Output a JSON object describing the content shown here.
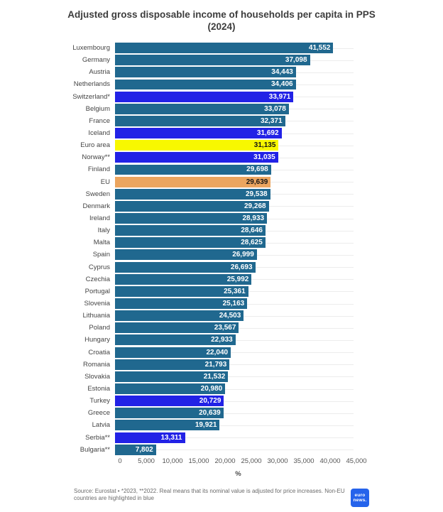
{
  "colors": {
    "teal": "#20688f",
    "blue": "#2222e6",
    "yellow": "#f8f800",
    "orange": "#eba55f",
    "logo_blue": "#2563eb",
    "value_light": "#ffffff",
    "value_dark": "#141414"
  },
  "chart_data": {
    "type": "bar",
    "orientation": "horizontal",
    "title": "Adjusted gross disposable income of households per capita in PPS (2024)",
    "xlabel": "%",
    "xlim": [
      0,
      45000
    ],
    "grid": "horizontal-row-lines",
    "xticks": [
      0,
      5000,
      10000,
      15000,
      20000,
      25000,
      30000,
      35000,
      40000,
      45000
    ],
    "xtick_labels": [
      "0",
      "5,000",
      "10,000",
      "15,000",
      "20,000",
      "25,000",
      "30,000",
      "35,000",
      "40,000",
      "45,000"
    ],
    "bars": [
      {
        "label": "Luxembourg",
        "value": 41552,
        "display": "41,552",
        "color": "teal"
      },
      {
        "label": "Germany",
        "value": 37098,
        "display": "37,098",
        "color": "teal"
      },
      {
        "label": "Austria",
        "value": 34443,
        "display": "34,443",
        "color": "teal"
      },
      {
        "label": "Netherlands",
        "value": 34406,
        "display": "34,406",
        "color": "teal"
      },
      {
        "label": "Switzerland*",
        "value": 33971,
        "display": "33,971",
        "color": "blue"
      },
      {
        "label": "Belgium",
        "value": 33078,
        "display": "33,078",
        "color": "teal"
      },
      {
        "label": "France",
        "value": 32371,
        "display": "32,371",
        "color": "teal"
      },
      {
        "label": "Iceland",
        "value": 31692,
        "display": "31,692",
        "color": "blue"
      },
      {
        "label": "Euro area",
        "value": 31135,
        "display": "31,135",
        "color": "yellow"
      },
      {
        "label": "Norway**",
        "value": 31035,
        "display": "31,035",
        "color": "blue"
      },
      {
        "label": "Finland",
        "value": 29698,
        "display": "29,698",
        "color": "teal"
      },
      {
        "label": "EU",
        "value": 29639,
        "display": "29,639",
        "color": "orange"
      },
      {
        "label": "Sweden",
        "value": 29538,
        "display": "29,538",
        "color": "teal"
      },
      {
        "label": "Denmark",
        "value": 29268,
        "display": "29,268",
        "color": "teal"
      },
      {
        "label": "Ireland",
        "value": 28933,
        "display": "28,933",
        "color": "teal"
      },
      {
        "label": "Italy",
        "value": 28646,
        "display": "28,646",
        "color": "teal"
      },
      {
        "label": "Malta",
        "value": 28625,
        "display": "28,625",
        "color": "teal"
      },
      {
        "label": "Spain",
        "value": 26999,
        "display": "26,999",
        "color": "teal"
      },
      {
        "label": "Cyprus",
        "value": 26693,
        "display": "26,693",
        "color": "teal"
      },
      {
        "label": "Czechia",
        "value": 25992,
        "display": "25,992",
        "color": "teal"
      },
      {
        "label": "Portugal",
        "value": 25361,
        "display": "25,361",
        "color": "teal"
      },
      {
        "label": "Slovenia",
        "value": 25163,
        "display": "25,163",
        "color": "teal"
      },
      {
        "label": "Lithuania",
        "value": 24503,
        "display": "24,503",
        "color": "teal"
      },
      {
        "label": "Poland",
        "value": 23567,
        "display": "23,567",
        "color": "teal"
      },
      {
        "label": "Hungary",
        "value": 22933,
        "display": "22,933",
        "color": "teal"
      },
      {
        "label": "Croatia",
        "value": 22040,
        "display": "22,040",
        "color": "teal"
      },
      {
        "label": "Romania",
        "value": 21793,
        "display": "21,793",
        "color": "teal"
      },
      {
        "label": "Slovakia",
        "value": 21532,
        "display": "21,532",
        "color": "teal"
      },
      {
        "label": "Estonia",
        "value": 20980,
        "display": "20,980",
        "color": "teal"
      },
      {
        "label": "Turkey",
        "value": 20729,
        "display": "20,729",
        "color": "blue"
      },
      {
        "label": "Greece",
        "value": 20639,
        "display": "20,639",
        "color": "teal"
      },
      {
        "label": "Latvia",
        "value": 19921,
        "display": "19,921",
        "color": "teal"
      },
      {
        "label": "Serbia**",
        "value": 13311,
        "display": "13,311",
        "color": "blue"
      },
      {
        "label": "Bulgaria**",
        "value": 7802,
        "display": "7,802",
        "color": "teal"
      }
    ]
  },
  "footer": {
    "source": "Source: Eurostat • *2023, **2022. Real means that its nominal value is adjusted for price increases. Non-EU countries are highlighted in blue",
    "logo_line1": "euro",
    "logo_line2": "news."
  }
}
